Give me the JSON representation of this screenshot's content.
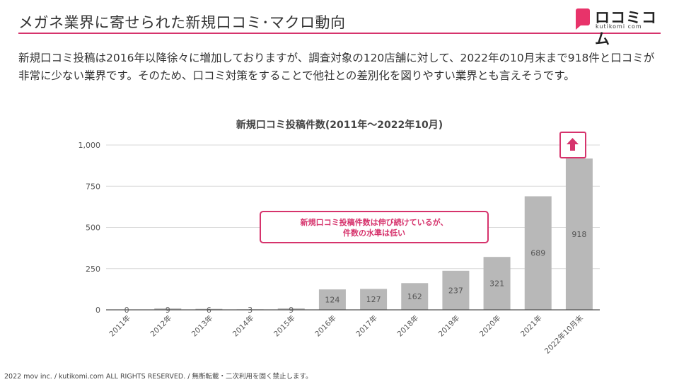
{
  "header": {
    "title": "メガネ業界に寄せられた新規口コミ･マクロ動向"
  },
  "logo": {
    "name": "ロコミコム",
    "sub": "kutikomi com"
  },
  "description": "新規口コミ投稿は2016年以降徐々に増加しておりますが、調査対象の120店舗に対して、2022年の10月末まで918件と口コミが非常に少ない業界です。そのため、口コミ対策をすることで他社との差別化を図りやすい業界とも言えそうです。",
  "callout": {
    "line1": "新規口コミ投稿件数は伸び続けているが、",
    "line2": "件数の水準は低い"
  },
  "footer": "2022 mov inc. / kutikomi.com ALL RIGHTS RESERVED. / 無断転載・二次利用を固く禁止します。",
  "colors": {
    "accent": "#d6336c",
    "bar": "#b8b8b8",
    "grid": "#d9d9d9"
  },
  "icons": {
    "arrow": "up-arrow-icon"
  },
  "chart_data": {
    "type": "bar",
    "title": "新規口コミ投稿件数(2011年～2022年10月)",
    "categories": [
      "2011年",
      "2012年",
      "2013年",
      "2014年",
      "2015年",
      "2016年",
      "2017年",
      "2018年",
      "2019年",
      "2020年",
      "2021年",
      "2022年10月末"
    ],
    "values": [
      0,
      9,
      6,
      3,
      9,
      124,
      127,
      162,
      237,
      321,
      689,
      918
    ],
    "ylim": [
      0,
      1000
    ],
    "yticks": [
      0,
      250,
      500,
      750,
      1000
    ],
    "ytick_labels": [
      "0",
      "250",
      "500",
      "750",
      "1,000"
    ],
    "grid": true,
    "legend": "none"
  }
}
